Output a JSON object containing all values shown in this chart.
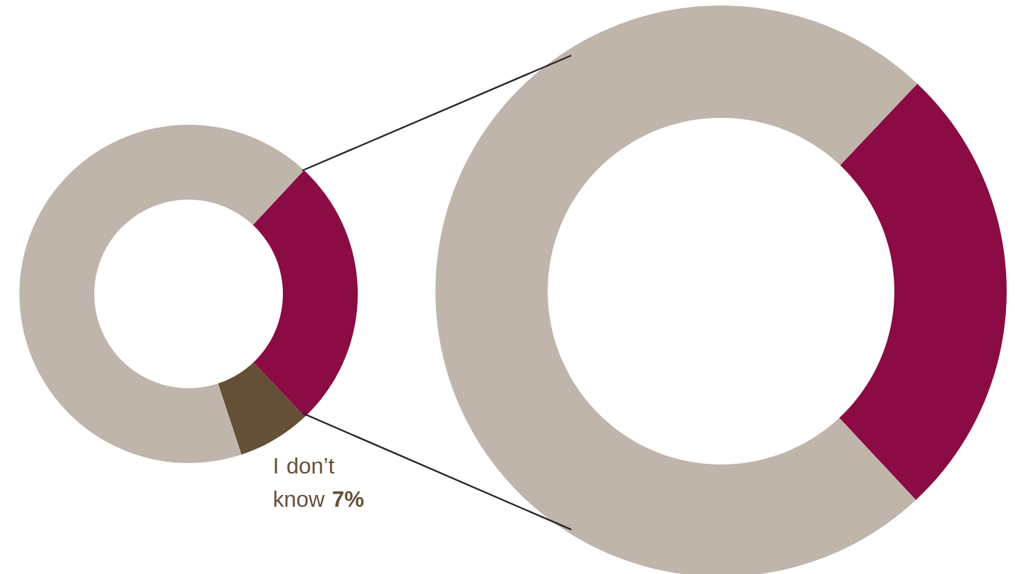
{
  "chart_data": [
    {
      "type": "donut",
      "categories": [
        null,
        "I don’t know",
        null
      ],
      "values": [
        26,
        7,
        67
      ],
      "colors": [
        "#8b0b44",
        "#644f37",
        "#c0b5ab"
      ],
      "value_labels": [
        null,
        "7%",
        null
      ]
    },
    {
      "type": "donut",
      "categories": [
        null,
        null
      ],
      "values": [
        26,
        74
      ],
      "colors": [
        "#8b0b44",
        "#c0b5ab"
      ]
    }
  ]
}
